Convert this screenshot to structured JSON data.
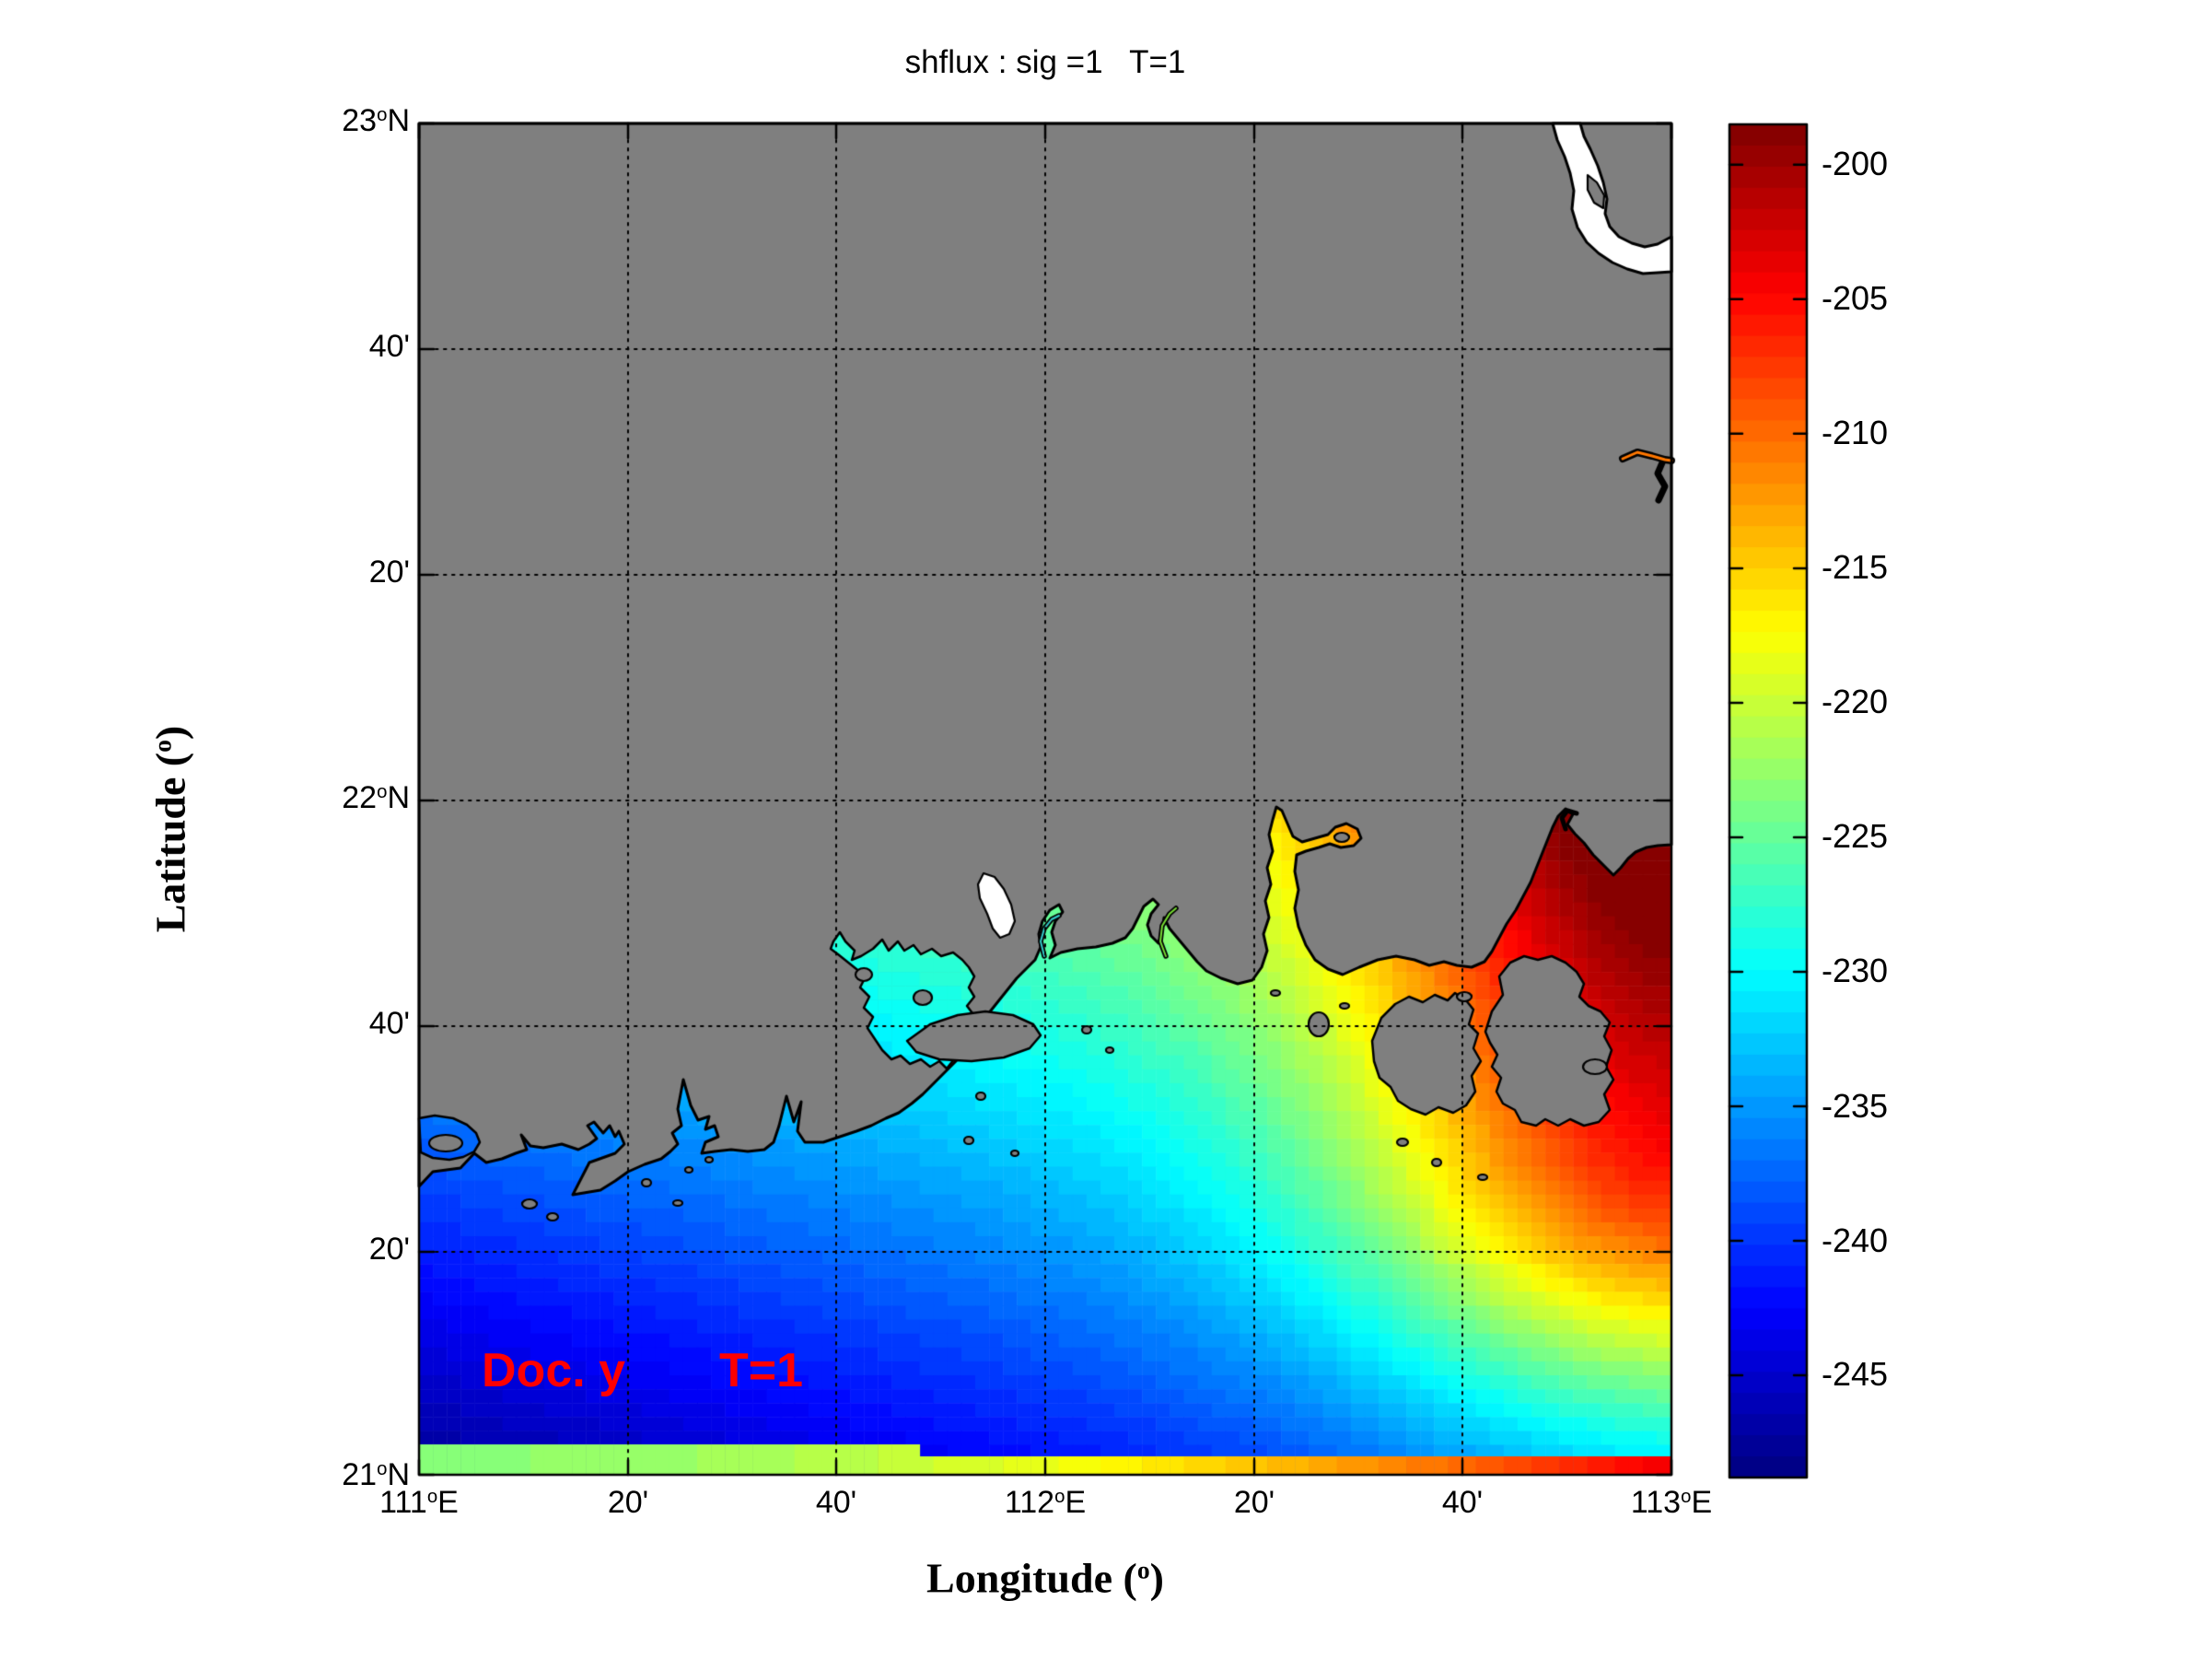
{
  "title": "shflux : sig =1   T=1",
  "xlabel": {
    "prefix": "Longitude (",
    "deg": "o",
    "suffix": ")"
  },
  "ylabel": {
    "prefix": "Latitude (",
    "deg": "o",
    "suffix": ")"
  },
  "x_ticks": [
    {
      "num": "111",
      "deg": "o",
      "suf": "E"
    },
    {
      "num": "20'",
      "deg": "",
      "suf": ""
    },
    {
      "num": "40'",
      "deg": "",
      "suf": ""
    },
    {
      "num": "112",
      "deg": "o",
      "suf": "E"
    },
    {
      "num": "20'",
      "deg": "",
      "suf": ""
    },
    {
      "num": "40'",
      "deg": "",
      "suf": ""
    },
    {
      "num": "113",
      "deg": "o",
      "suf": "E"
    }
  ],
  "y_ticks": [
    {
      "num": "23",
      "deg": "o",
      "suf": "N"
    },
    {
      "num": "40'",
      "deg": "",
      "suf": ""
    },
    {
      "num": "20'",
      "deg": "",
      "suf": ""
    },
    {
      "num": "22",
      "deg": "o",
      "suf": "N"
    },
    {
      "num": "40'",
      "deg": "",
      "suf": ""
    },
    {
      "num": "20'",
      "deg": "",
      "suf": ""
    },
    {
      "num": "21",
      "deg": "o",
      "suf": "N"
    }
  ],
  "colorbar": {
    "labels": [
      "-200",
      "-205",
      "-210",
      "-215",
      "-220",
      "-225",
      "-230",
      "-235",
      "-240",
      "-245"
    ],
    "vmin": -248.8,
    "vmax": -198.5,
    "colormap": "jet",
    "levels": 64
  },
  "annotation": {
    "text1": "Doc. y",
    "text2": "T=1",
    "color": "#ff0000"
  },
  "colors": {
    "land": "#7f7f7f",
    "coastline": "#000000",
    "background": "#ffffff",
    "river_fill": "#ffffff",
    "annotation_red": "#ff0000"
  },
  "chart_data": {
    "type": "heatmap",
    "title": "shflux : sig =1   T=1",
    "xlabel": "Longitude (o)",
    "ylabel": "Latitude (o)",
    "x_tick_labels": [
      "111E",
      "20'",
      "40'",
      "112E",
      "20'",
      "40'",
      "113E"
    ],
    "y_tick_labels": [
      "23N",
      "40'",
      "20'",
      "22N",
      "40'",
      "20'",
      "21N"
    ],
    "xlim_deg": [
      111,
      113
    ],
    "ylim_deg": [
      21,
      23
    ],
    "colormap": "jet",
    "color_levels": 64,
    "value_range": [
      -248.8,
      -198.5
    ],
    "colorbar_ticks": [
      -200,
      -205,
      -210,
      -215,
      -220,
      -225,
      -230,
      -235,
      -240,
      -245
    ],
    "grid": "dotted",
    "land_mask_color": "#7f7f7f",
    "description": "Surface heat flux (shflux) field over the northern South China Sea shelf; gray = land mask, white = unmasked river/lake cells. Values increase from about -248 (dark blue, southwest) to about -199 (dark red) near the coast at 113E/21:50N. Bottom boundary row holds warmer forcing values (green to red, west to east).",
    "sampled_field": {
      "lon_labels": [
        "111E",
        "111:20E",
        "111:40E",
        "112E",
        "112:20E",
        "112:40E",
        "113E"
      ],
      "lat_labels": [
        "23N",
        "22:40N",
        "22:20N",
        "22N",
        "21:40N",
        "21:20N",
        "21N"
      ],
      "values": [
        [
          null,
          null,
          null,
          null,
          null,
          null,
          null
        ],
        [
          null,
          null,
          null,
          null,
          null,
          null,
          null
        ],
        [
          null,
          null,
          null,
          null,
          null,
          null,
          null
        ],
        [
          null,
          null,
          null,
          null,
          null,
          null,
          null
        ],
        [
          null,
          null,
          null,
          -229,
          -223,
          null,
          -201
        ],
        [
          -241,
          -239,
          -238,
          -236,
          -230,
          -220,
          -211
        ],
        [
          -223,
          -222,
          -221,
          -218,
          -214,
          -210,
          -204
        ]
      ]
    }
  }
}
